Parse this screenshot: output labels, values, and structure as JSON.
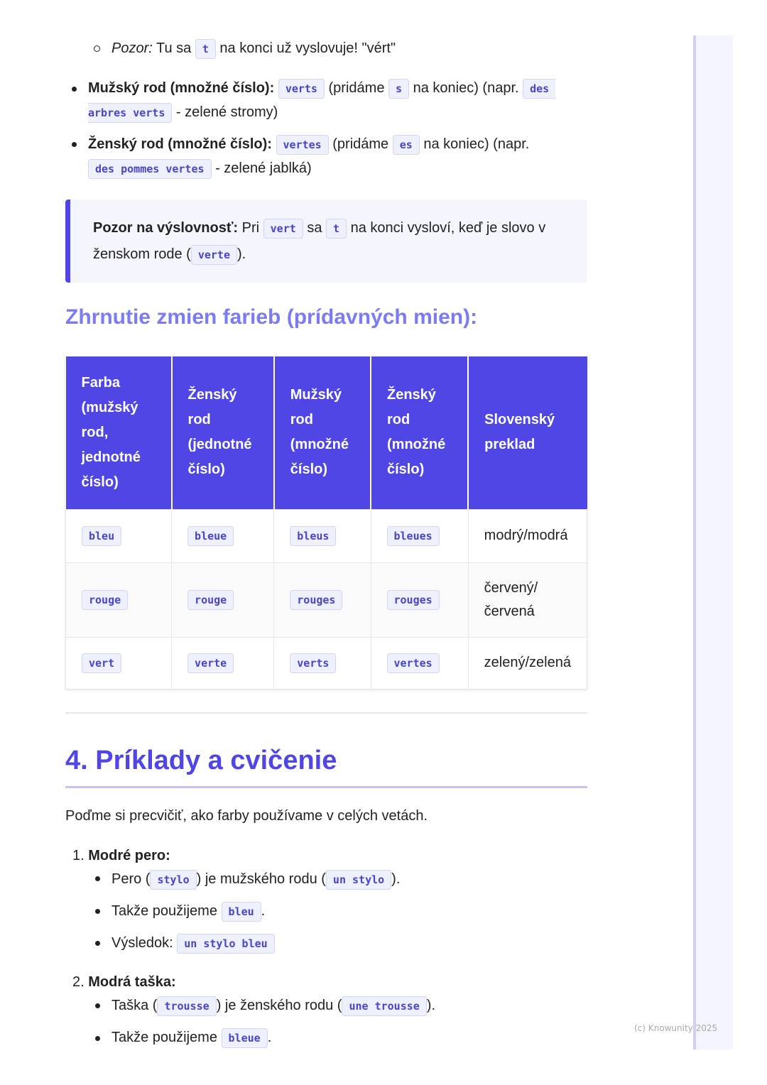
{
  "top": {
    "l1": {
      "em": "Pozor:",
      "a": " Tu sa ",
      "c": "t",
      "b": " na konci už vyslovuje! \"vért\""
    },
    "l2": {
      "bold": "Mužský rod (množné číslo):",
      "c1": "verts",
      "a": " (pridáme ",
      "c2": "s",
      "b": " na koniec) (napr. ",
      "c3": "des",
      "c4": "arbres verts",
      "d": " - zelené stromy)"
    },
    "l3": {
      "bold": "Ženský rod (množné číslo):",
      "c1": "vertes",
      "a": " (pridáme ",
      "c2": "es",
      "b": " na koniec) (napr.",
      "c3": "des pommes vertes",
      "d": " - zelené jablká)"
    }
  },
  "callout": {
    "bold": "Pozor na výslovnosť:",
    "a": " Pri ",
    "c1": "vert",
    "b": " sa ",
    "c2": "t",
    "c": " na konci vysloví, keď je slovo v",
    "d": "ženskom rode (",
    "c3": "verte",
    "e": ")."
  },
  "summary_heading": "Zhrnutie zmien farieb (prídavných mien):",
  "table": {
    "headers": [
      "Farba (mužský rod, jednotné číslo)",
      "Ženský rod (jednotné číslo)",
      "Mužský rod (množné číslo)",
      "Ženský rod (množné číslo)",
      "Slovenský preklad"
    ],
    "rows": [
      [
        "bleu",
        "bleue",
        "bleus",
        "bleues",
        "modrý/modrá"
      ],
      [
        "rouge",
        "rouge",
        "rouges",
        "rouges",
        "červený/ červená"
      ],
      [
        "vert",
        "verte",
        "verts",
        "vertes",
        "zelený/zelená"
      ]
    ]
  },
  "section": {
    "title": "4. Príklady a cvičenie",
    "intro": "Poďme si precvičiť, ako farby používame v celých vetách."
  },
  "examples": [
    {
      "num": "1.",
      "title": "Modré pero:",
      "i1": {
        "a": "Pero (",
        "c1": "stylo",
        "b": ") je mužského rodu (",
        "c2": "un stylo",
        "c": ")."
      },
      "i2": {
        "a": "Takže použijeme ",
        "c1": "bleu",
        "b": "."
      },
      "i3": {
        "a": "Výsledok: ",
        "c1": "un stylo bleu"
      }
    },
    {
      "num": "2.",
      "title": "Modrá taška:",
      "i1": {
        "a": "Taška (",
        "c1": "trousse",
        "b": ") je ženského rodu (",
        "c2": "une trousse",
        "c": ")."
      },
      "i2": {
        "a": "Takže použijeme ",
        "c1": "bleue",
        "b": "."
      }
    }
  ],
  "footer": "(c) Knowunity 2025",
  "colors": {
    "accent": "#4f46e5",
    "heading3": "#7b7cf2",
    "code_bg": "#eef0fb"
  }
}
